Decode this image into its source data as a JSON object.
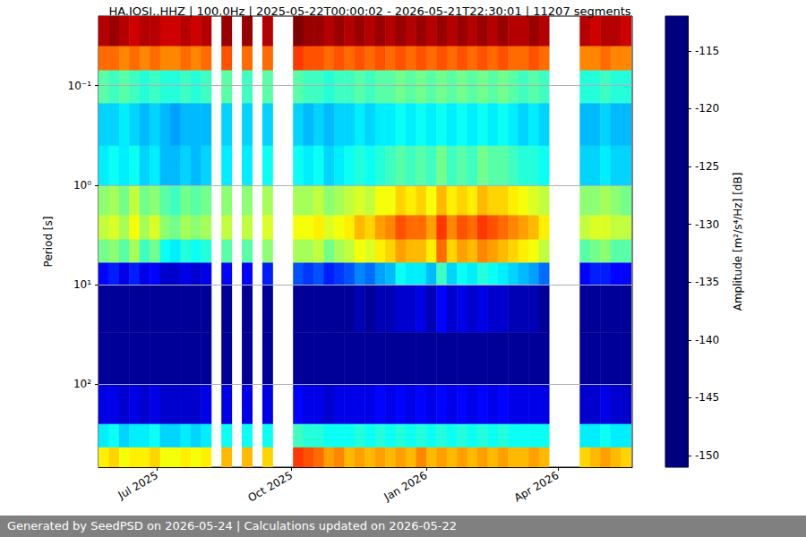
{
  "chart_data": {
    "type": "heatmap",
    "title": "HA.IOSI..HHZ | 100.0Hz | 2025-05-22T00:00:02 - 2026-05-21T22:30:01 | 11207 segments",
    "footer": "Generated by SeedPSD on 2026-05-24 | Calculations updated on 2026-05-22",
    "ylabel": "Period [s]",
    "colorbar_label": "Amplitude [m²/s⁴/Hz] [dB]",
    "log": "y",
    "grid": true,
    "xlim": [
      "2025-05-22T00:00:02",
      "2026-05-21T22:30:01"
    ],
    "xticks": [
      {
        "value": "2025-07-01",
        "label": "Jul 2025"
      },
      {
        "value": "2025-10-01",
        "label": "Oct 2025"
      },
      {
        "value": "2026-01-01",
        "label": "Jan 2026"
      },
      {
        "value": "2026-04-01",
        "label": "Apr 2026"
      }
    ],
    "ylim": [
      0.02,
      680
    ],
    "yticks": [
      {
        "value": 0.1,
        "label": "10⁻¹"
      },
      {
        "value": 1,
        "label": "10⁰"
      },
      {
        "value": 10,
        "label": "10¹"
      },
      {
        "value": 100,
        "label": "10²"
      }
    ],
    "clim": [
      -151,
      -112
    ],
    "cticks": [
      -150,
      -145,
      -140,
      -135,
      -130,
      -125,
      -120,
      -115
    ],
    "x_edges": [
      "2025-05-22",
      "2025-05-29",
      "2025-06-05",
      "2025-06-12",
      "2025-06-19",
      "2025-06-26",
      "2025-07-03",
      "2025-07-10",
      "2025-07-17",
      "2025-07-24",
      "2025-07-31",
      "2025-08-07",
      "2025-08-14",
      "2025-08-21",
      "2025-08-28",
      "2025-09-04",
      "2025-09-11",
      "2025-09-18",
      "2025-09-25",
      "2025-10-02",
      "2025-10-09",
      "2025-10-16",
      "2025-10-23",
      "2025-10-30",
      "2025-11-06",
      "2025-11-13",
      "2025-11-20",
      "2025-11-27",
      "2025-12-04",
      "2025-12-11",
      "2025-12-18",
      "2025-12-25",
      "2026-01-01",
      "2026-01-08",
      "2026-01-15",
      "2026-01-22",
      "2026-01-29",
      "2026-02-05",
      "2026-02-12",
      "2026-02-19",
      "2026-02-26",
      "2026-03-05",
      "2026-03-12",
      "2026-03-19",
      "2026-03-26",
      "2026-04-02",
      "2026-04-09",
      "2026-04-16",
      "2026-04-23",
      "2026-04-30",
      "2026-05-07",
      "2026-05-14",
      "2026-05-21"
    ],
    "y_edges": [
      0.02,
      0.04,
      0.07,
      0.15,
      0.4,
      1,
      2,
      3.5,
      6,
      10,
      30,
      100,
      250,
      430,
      680
    ],
    "cells": [
      [
        -114,
        -121,
        -133,
        -138,
        -137,
        -131,
        -129,
        -132,
        -146,
        -150,
        -150,
        -147,
        -137,
        -126
      ],
      [
        -113,
        -121,
        -134,
        -138,
        -136,
        -130,
        -128,
        -131,
        -145,
        -150,
        -150,
        -147,
        -136,
        -125
      ],
      [
        -114,
        -122,
        -133,
        -137,
        -137,
        -132,
        -130,
        -133,
        -147,
        -150,
        -150,
        -148,
        -138,
        -127
      ],
      [
        -115,
        -121,
        -134,
        -138,
        -136,
        -129,
        -127,
        -130,
        -145,
        -150,
        -150,
        -147,
        -137,
        -126
      ],
      [
        -114,
        -122,
        -135,
        -139,
        -138,
        -132,
        -130,
        -134,
        -147,
        -150,
        -150,
        -148,
        -137,
        -126
      ],
      [
        -114,
        -121,
        -134,
        -138,
        -137,
        -131,
        -128,
        -132,
        -146,
        -150,
        -150,
        -147,
        -136,
        -125
      ],
      [
        -115,
        -122,
        -135,
        -139,
        -139,
        -133,
        -131,
        -136,
        -148,
        -150,
        -150,
        -148,
        -138,
        -127
      ],
      [
        -115,
        -122,
        -135,
        -140,
        -139,
        -134,
        -132,
        -137,
        -148,
        -150,
        -150,
        -148,
        -138,
        -127
      ],
      [
        -114,
        -121,
        -134,
        -139,
        -138,
        -132,
        -130,
        -135,
        -147,
        -150,
        -150,
        -148,
        -137,
        -126
      ],
      [
        -115,
        -122,
        -135,
        -139,
        -139,
        -133,
        -131,
        -136,
        -148,
        -150,
        -150,
        -148,
        -138,
        -127
      ],
      [
        -114,
        -121,
        -134,
        -139,
        -138,
        -132,
        -130,
        -135,
        -147,
        -150,
        -150,
        -147,
        -137,
        -126
      ],
      null,
      [
        -113,
        -120,
        -133,
        -138,
        -137,
        -131,
        -129,
        -133,
        -146,
        -150,
        -150,
        -147,
        -136,
        -124
      ],
      null,
      [
        -113,
        -121,
        -134,
        -138,
        -137,
        -131,
        -129,
        -133,
        -146,
        -150,
        -150,
        -147,
        -136,
        -124
      ],
      null,
      [
        -114,
        -121,
        -133,
        -138,
        -136,
        -130,
        -128,
        -131,
        -145,
        -150,
        -150,
        -147,
        -136,
        -125
      ],
      null,
      null,
      [
        -112,
        -119,
        -133,
        -138,
        -136,
        -130,
        -127,
        -130,
        -143,
        -150,
        -150,
        -146,
        -134,
        -119
      ],
      [
        -113,
        -120,
        -134,
        -139,
        -137,
        -130,
        -127,
        -130,
        -144,
        -150,
        -150,
        -147,
        -135,
        -120
      ],
      [
        -113,
        -120,
        -134,
        -138,
        -136,
        -129,
        -126,
        -129,
        -143,
        -150,
        -150,
        -147,
        -135,
        -121
      ],
      [
        -114,
        -121,
        -135,
        -139,
        -138,
        -131,
        -128,
        -132,
        -145,
        -150,
        -150,
        -148,
        -136,
        -123
      ],
      [
        -113,
        -120,
        -134,
        -138,
        -137,
        -130,
        -127,
        -130,
        -144,
        -150,
        -150,
        -147,
        -136,
        -122
      ],
      [
        -114,
        -121,
        -134,
        -138,
        -136,
        -129,
        -126,
        -129,
        -143,
        -150,
        -150,
        -147,
        -136,
        -124
      ],
      [
        -113,
        -120,
        -133,
        -137,
        -135,
        -128,
        -124,
        -127,
        -141,
        -149,
        -150,
        -147,
        -135,
        -123
      ],
      [
        -114,
        -121,
        -134,
        -138,
        -136,
        -129,
        -125,
        -128,
        -142,
        -150,
        -150,
        -147,
        -136,
        -124
      ],
      [
        -113,
        -120,
        -133,
        -137,
        -135,
        -127,
        -123,
        -126,
        -140,
        -149,
        -150,
        -146,
        -135,
        -123
      ],
      [
        -114,
        -121,
        -133,
        -137,
        -134,
        -127,
        -122,
        -125,
        -139,
        -149,
        -150,
        -147,
        -136,
        -124
      ],
      [
        -113,
        -120,
        -132,
        -136,
        -133,
        -125,
        -120,
        -123,
        -136,
        -148,
        -150,
        -146,
        -135,
        -123
      ],
      [
        -114,
        -121,
        -133,
        -137,
        -134,
        -126,
        -121,
        -124,
        -137,
        -148,
        -150,
        -147,
        -136,
        -124
      ],
      [
        -113,
        -120,
        -132,
        -136,
        -133,
        -125,
        -121,
        -124,
        -137,
        -147,
        -150,
        -146,
        -135,
        -122
      ],
      [
        -114,
        -121,
        -133,
        -137,
        -134,
        -127,
        -123,
        -126,
        -139,
        -149,
        -150,
        -147,
        -136,
        -124
      ],
      [
        -113,
        -120,
        -132,
        -136,
        -132,
        -124,
        -119,
        -121,
        -134,
        -146,
        -150,
        -146,
        -135,
        -123
      ],
      [
        -114,
        -121,
        -133,
        -137,
        -134,
        -126,
        -122,
        -125,
        -138,
        -148,
        -150,
        -147,
        -136,
        -124
      ],
      [
        -113,
        -120,
        -132,
        -136,
        -133,
        -125,
        -120,
        -123,
        -136,
        -147,
        -150,
        -146,
        -135,
        -123
      ],
      [
        -114,
        -121,
        -133,
        -137,
        -134,
        -126,
        -121,
        -124,
        -137,
        -148,
        -150,
        -147,
        -136,
        -124
      ],
      [
        -113,
        -120,
        -132,
        -136,
        -132,
        -124,
        -119,
        -122,
        -135,
        -147,
        -150,
        -146,
        -135,
        -123
      ],
      [
        -114,
        -121,
        -133,
        -137,
        -133,
        -125,
        -120,
        -123,
        -136,
        -148,
        -150,
        -147,
        -136,
        -124
      ],
      [
        -113,
        -120,
        -132,
        -136,
        -133,
        -125,
        -121,
        -124,
        -137,
        -148,
        -150,
        -146,
        -135,
        -123
      ],
      [
        -114,
        -121,
        -133,
        -137,
        -134,
        -126,
        -122,
        -125,
        -138,
        -149,
        -150,
        -147,
        -136,
        -124
      ],
      [
        -114,
        -121,
        -134,
        -138,
        -135,
        -127,
        -123,
        -126,
        -139,
        -149,
        -150,
        -147,
        -136,
        -124
      ],
      [
        -113,
        -120,
        -133,
        -137,
        -135,
        -128,
        -124,
        -127,
        -140,
        -149,
        -150,
        -147,
        -136,
        -123
      ],
      [
        -114,
        -121,
        -134,
        -138,
        -136,
        -129,
        -126,
        -129,
        -142,
        -150,
        -150,
        -147,
        -136,
        -124
      ],
      null,
      null,
      null,
      [
        -114,
        -122,
        -135,
        -139,
        -138,
        -131,
        -129,
        -133,
        -146,
        -150,
        -150,
        -148,
        -137,
        -125
      ],
      [
        -115,
        -122,
        -135,
        -139,
        -138,
        -131,
        -128,
        -132,
        -145,
        -150,
        -150,
        -148,
        -137,
        -124
      ],
      [
        -114,
        -121,
        -134,
        -138,
        -137,
        -130,
        -128,
        -131,
        -145,
        -150,
        -150,
        -147,
        -136,
        -123
      ],
      [
        -114,
        -122,
        -135,
        -139,
        -138,
        -131,
        -129,
        -133,
        -146,
        -150,
        -150,
        -148,
        -137,
        -124
      ],
      [
        -115,
        -122,
        -135,
        -139,
        -138,
        -132,
        -129,
        -133,
        -146,
        -150,
        -150,
        -148,
        -137,
        -125
      ]
    ]
  }
}
